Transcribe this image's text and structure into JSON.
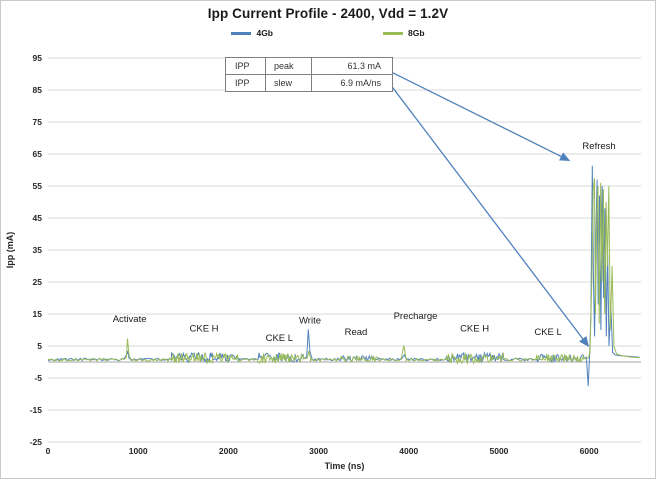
{
  "chart_data": {
    "type": "line",
    "title": "Ipp Current Profile - 2400, Vdd = 1.2V",
    "xlabel": "Time (ns)",
    "ylabel": "Ipp (mA)",
    "xlim": [
      0,
      6575
    ],
    "ylim": [
      -25,
      95
    ],
    "xticks": [
      0,
      1000,
      2000,
      3000,
      4000,
      5000,
      6000
    ],
    "yticks": [
      -25,
      -15,
      -5,
      5,
      15,
      25,
      35,
      45,
      55,
      65,
      75,
      85,
      95
    ],
    "grid": "horizontal",
    "legend_position": "top",
    "zero_line": 0,
    "annotation_color": "#4F81BD",
    "series": [
      {
        "name": "4Gb",
        "color": "#4F81BD",
        "segments": [
          {
            "type": "noise",
            "x0": 0,
            "x1": 840,
            "base": 0.8,
            "amp": 0.4,
            "step": 18
          },
          {
            "type": "points",
            "pts": [
              [
                840,
                0.8
              ],
              [
                868,
                2.2
              ],
              [
                884,
                3.2
              ],
              [
                900,
                1.0
              ]
            ]
          },
          {
            "type": "noise",
            "x0": 900,
            "x1": 1370,
            "base": 0.8,
            "amp": 0.4,
            "step": 18
          },
          {
            "type": "noise",
            "x0": 1370,
            "x1": 2120,
            "base": 1.4,
            "amp": 1.5,
            "step": 10
          },
          {
            "type": "noise",
            "x0": 2120,
            "x1": 2330,
            "base": 0.8,
            "amp": 0.4,
            "step": 18
          },
          {
            "type": "noise",
            "x0": 2330,
            "x1": 2830,
            "base": 1.4,
            "amp": 1.5,
            "step": 10
          },
          {
            "type": "points",
            "pts": [
              [
                2830,
                1.0
              ],
              [
                2868,
                1.6
              ],
              [
                2886,
                10.2
              ],
              [
                2905,
                3.0
              ],
              [
                2925,
                1.4
              ]
            ]
          },
          {
            "type": "noise",
            "x0": 2925,
            "x1": 3240,
            "base": 0.8,
            "amp": 0.4,
            "step": 18
          },
          {
            "type": "noise",
            "x0": 3240,
            "x1": 3660,
            "base": 1.1,
            "amp": 0.9,
            "step": 12
          },
          {
            "type": "noise",
            "x0": 3660,
            "x1": 3920,
            "base": 0.8,
            "amp": 0.4,
            "step": 18
          },
          {
            "type": "points",
            "pts": [
              [
                3920,
                0.9
              ],
              [
                3950,
                2.2
              ],
              [
                3975,
                0.9
              ]
            ]
          },
          {
            "type": "noise",
            "x0": 3975,
            "x1": 4420,
            "base": 0.8,
            "amp": 0.4,
            "step": 18
          },
          {
            "type": "noise",
            "x0": 4420,
            "x1": 5050,
            "base": 1.4,
            "amp": 1.5,
            "step": 10
          },
          {
            "type": "noise",
            "x0": 5050,
            "x1": 5420,
            "base": 0.8,
            "amp": 0.4,
            "step": 18
          },
          {
            "type": "noise",
            "x0": 5420,
            "x1": 5940,
            "base": 1.2,
            "amp": 1.2,
            "step": 10
          },
          {
            "type": "points",
            "pts": [
              [
                5940,
                1.0
              ],
              [
                5970,
                1.5
              ],
              [
                5990,
                -7.5
              ],
              [
                6005,
                2.0
              ],
              [
                6020,
                15.0
              ],
              [
                6035,
                61.3
              ],
              [
                6048,
                25.0
              ],
              [
                6060,
                8.0
              ],
              [
                6075,
                40.0
              ],
              [
                6088,
                57.0
              ],
              [
                6100,
                18.0
              ],
              [
                6115,
                52.0
              ],
              [
                6130,
                10.0
              ],
              [
                6145,
                55.0
              ],
              [
                6160,
                20.0
              ],
              [
                6175,
                48.0
              ],
              [
                6190,
                8.0
              ],
              [
                6205,
                35.0
              ],
              [
                6220,
                5.0
              ],
              [
                6240,
                18.0
              ],
              [
                6260,
                3.0
              ],
              [
                6290,
                2.2
              ],
              [
                6340,
                2.0
              ],
              [
                6420,
                1.8
              ],
              [
                6560,
                1.5
              ]
            ]
          }
        ]
      },
      {
        "name": "8Gb",
        "color": "#9BBB59",
        "segments": [
          {
            "type": "noise",
            "x0": 0,
            "x1": 845,
            "base": 0.7,
            "amp": 0.4,
            "step": 18
          },
          {
            "type": "points",
            "pts": [
              [
                845,
                0.8
              ],
              [
                868,
                1.5
              ],
              [
                882,
                7.3
              ],
              [
                898,
                2.2
              ],
              [
                915,
                0.9
              ]
            ]
          },
          {
            "type": "noise",
            "x0": 915,
            "x1": 1370,
            "base": 0.7,
            "amp": 0.4,
            "step": 18
          },
          {
            "type": "noise",
            "x0": 1370,
            "x1": 2120,
            "base": 1.2,
            "amp": 1.6,
            "step": 10
          },
          {
            "type": "noise",
            "x0": 2120,
            "x1": 2330,
            "base": 0.7,
            "amp": 0.4,
            "step": 18
          },
          {
            "type": "noise",
            "x0": 2330,
            "x1": 2830,
            "base": 1.2,
            "amp": 1.6,
            "step": 10
          },
          {
            "type": "points",
            "pts": [
              [
                2830,
                1.0
              ],
              [
                2875,
                1.2
              ],
              [
                2892,
                3.5
              ],
              [
                2910,
                1.2
              ]
            ]
          },
          {
            "type": "noise",
            "x0": 2910,
            "x1": 3240,
            "base": 0.7,
            "amp": 0.4,
            "step": 18
          },
          {
            "type": "noise",
            "x0": 3240,
            "x1": 3660,
            "base": 1.0,
            "amp": 0.9,
            "step": 12
          },
          {
            "type": "noise",
            "x0": 3660,
            "x1": 3915,
            "base": 0.7,
            "amp": 0.4,
            "step": 18
          },
          {
            "type": "points",
            "pts": [
              [
                3915,
                0.8
              ],
              [
                3945,
                5.2
              ],
              [
                3970,
                1.1
              ]
            ]
          },
          {
            "type": "noise",
            "x0": 3970,
            "x1": 4420,
            "base": 0.7,
            "amp": 0.4,
            "step": 18
          },
          {
            "type": "noise",
            "x0": 4420,
            "x1": 5050,
            "base": 1.2,
            "amp": 1.6,
            "step": 10
          },
          {
            "type": "noise",
            "x0": 5050,
            "x1": 5420,
            "base": 0.7,
            "amp": 0.4,
            "step": 18
          },
          {
            "type": "noise",
            "x0": 5420,
            "x1": 5940,
            "base": 1.1,
            "amp": 1.2,
            "step": 10
          },
          {
            "type": "points",
            "pts": [
              [
                5940,
                1.0
              ],
              [
                5990,
                1.2
              ],
              [
                6010,
                3.0
              ],
              [
                6030,
                25.0
              ],
              [
                6045,
                54.0
              ],
              [
                6058,
                57.5
              ],
              [
                6070,
                15.0
              ],
              [
                6085,
                45.0
              ],
              [
                6098,
                55.0
              ],
              [
                6112,
                12.0
              ],
              [
                6128,
                56.0
              ],
              [
                6142,
                25.0
              ],
              [
                6158,
                54.0
              ],
              [
                6172,
                15.0
              ],
              [
                6188,
                50.0
              ],
              [
                6202,
                30.0
              ],
              [
                6218,
                55.0
              ],
              [
                6235,
                10.0
              ],
              [
                6255,
                30.0
              ],
              [
                6275,
                5.0
              ],
              [
                6305,
                2.5
              ],
              [
                6360,
                2.0
              ],
              [
                6450,
                1.6
              ],
              [
                6560,
                1.3
              ]
            ]
          }
        ]
      }
    ],
    "labels": [
      {
        "text": "Activate",
        "x": 905,
        "y": 12.5
      },
      {
        "text": "CKE H",
        "x": 1730,
        "y": 9.5
      },
      {
        "text": "CKE L",
        "x": 2565,
        "y": 6.5
      },
      {
        "text": "Write",
        "x": 2905,
        "y": 12.0
      },
      {
        "text": "Read",
        "x": 3415,
        "y": 8.5
      },
      {
        "text": "Precharge",
        "x": 4075,
        "y": 13.5
      },
      {
        "text": "CKE H",
        "x": 4730,
        "y": 9.5
      },
      {
        "text": "CKE L",
        "x": 5545,
        "y": 8.5
      },
      {
        "text": "Refresh",
        "x": 6110,
        "y": 66.5
      }
    ],
    "arrows": [
      {
        "from": [
          3815,
          90.5
        ],
        "to": [
          5778,
          63.0
        ]
      },
      {
        "from": [
          3815,
          86.0
        ],
        "to": [
          5990,
          5.0
        ]
      }
    ],
    "table": {
      "rows": [
        [
          "IPP",
          "peak",
          "61.3 mA"
        ],
        [
          "IPP",
          "slew",
          "6.9 mA/ns"
        ]
      ]
    }
  }
}
